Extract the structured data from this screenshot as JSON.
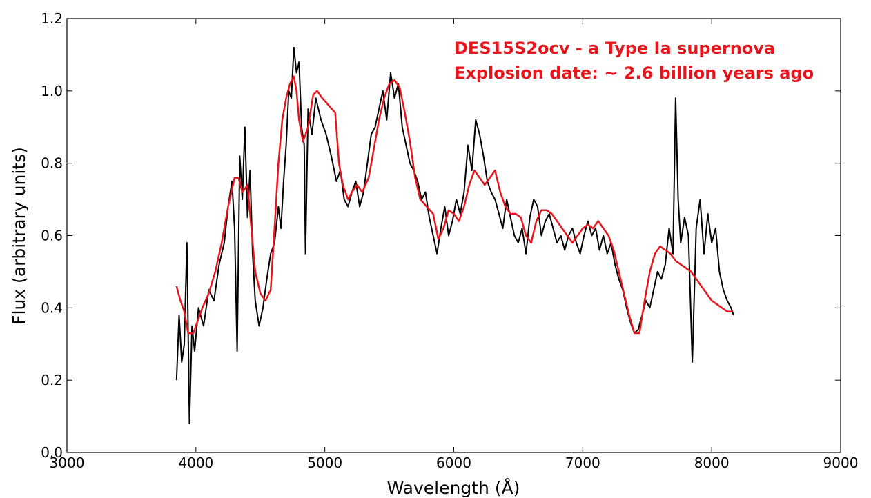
{
  "chart_data": {
    "type": "line",
    "xlabel": "Wavelength (Å)",
    "ylabel": "Flux (arbitrary units)",
    "xlim": [
      3000,
      9000
    ],
    "ylim": [
      0.0,
      1.2
    ],
    "x_ticks": [
      "3000",
      "4000",
      "5000",
      "6000",
      "7000",
      "8000",
      "9000"
    ],
    "y_ticks": [
      "0.0",
      "0.2",
      "0.4",
      "0.6",
      "0.8",
      "1.0",
      "1.2"
    ],
    "grid": false,
    "annotations": [
      "DES15S2ocv - a Type Ia supernova",
      "Explosion date: ~ 2.6 billion years ago"
    ],
    "colors": {
      "observed": "#000000",
      "template": "#e8141b",
      "annotation": "#e8141b"
    },
    "series": [
      {
        "role": "observed spectrum",
        "color": "#000000",
        "x": [
          3850,
          3870,
          3890,
          3910,
          3930,
          3950,
          3970,
          3990,
          4020,
          4060,
          4100,
          4140,
          4180,
          4220,
          4250,
          4280,
          4300,
          4320,
          4340,
          4360,
          4380,
          4400,
          4420,
          4440,
          4460,
          4490,
          4520,
          4550,
          4580,
          4610,
          4640,
          4660,
          4680,
          4700,
          4720,
          4740,
          4760,
          4780,
          4800,
          4820,
          4840,
          4850,
          4870,
          4900,
          4930,
          4970,
          5010,
          5050,
          5090,
          5120,
          5150,
          5180,
          5210,
          5240,
          5270,
          5300,
          5330,
          5360,
          5390,
          5420,
          5450,
          5480,
          5510,
          5540,
          5570,
          5600,
          5630,
          5660,
          5690,
          5720,
          5750,
          5780,
          5810,
          5840,
          5870,
          5900,
          5930,
          5960,
          5990,
          6020,
          6050,
          6080,
          6110,
          6140,
          6170,
          6200,
          6230,
          6260,
          6290,
          6320,
          6350,
          6380,
          6410,
          6440,
          6470,
          6500,
          6530,
          6560,
          6590,
          6620,
          6650,
          6680,
          6710,
          6740,
          6770,
          6800,
          6830,
          6860,
          6890,
          6920,
          6950,
          6980,
          7010,
          7040,
          7070,
          7100,
          7130,
          7160,
          7190,
          7220,
          7250,
          7280,
          7310,
          7340,
          7370,
          7400,
          7430,
          7460,
          7490,
          7520,
          7550,
          7580,
          7610,
          7640,
          7670,
          7700,
          7720,
          7740,
          7760,
          7790,
          7820,
          7850,
          7880,
          7910,
          7940,
          7970,
          8000,
          8030,
          8060,
          8090,
          8120,
          8150,
          8170
        ],
        "y": [
          0.2,
          0.38,
          0.25,
          0.3,
          0.58,
          0.08,
          0.35,
          0.28,
          0.4,
          0.35,
          0.45,
          0.42,
          0.52,
          0.58,
          0.68,
          0.75,
          0.62,
          0.28,
          0.82,
          0.7,
          0.9,
          0.65,
          0.78,
          0.55,
          0.42,
          0.35,
          0.4,
          0.48,
          0.55,
          0.58,
          0.68,
          0.62,
          0.75,
          0.85,
          1.0,
          0.98,
          1.12,
          1.05,
          1.08,
          0.9,
          0.85,
          0.55,
          0.95,
          0.88,
          0.98,
          0.92,
          0.88,
          0.82,
          0.75,
          0.78,
          0.7,
          0.68,
          0.72,
          0.75,
          0.68,
          0.72,
          0.8,
          0.88,
          0.9,
          0.95,
          1.0,
          0.92,
          1.05,
          0.98,
          1.02,
          0.9,
          0.85,
          0.8,
          0.78,
          0.75,
          0.7,
          0.72,
          0.65,
          0.6,
          0.55,
          0.62,
          0.68,
          0.6,
          0.64,
          0.7,
          0.66,
          0.72,
          0.85,
          0.78,
          0.92,
          0.88,
          0.82,
          0.75,
          0.72,
          0.7,
          0.66,
          0.62,
          0.7,
          0.65,
          0.6,
          0.58,
          0.62,
          0.55,
          0.65,
          0.7,
          0.68,
          0.6,
          0.64,
          0.66,
          0.62,
          0.58,
          0.6,
          0.56,
          0.6,
          0.62,
          0.58,
          0.55,
          0.6,
          0.64,
          0.6,
          0.62,
          0.56,
          0.6,
          0.55,
          0.58,
          0.52,
          0.48,
          0.45,
          0.4,
          0.36,
          0.33,
          0.34,
          0.38,
          0.42,
          0.4,
          0.45,
          0.5,
          0.48,
          0.52,
          0.62,
          0.55,
          0.98,
          0.7,
          0.58,
          0.65,
          0.6,
          0.25,
          0.62,
          0.7,
          0.55,
          0.66,
          0.58,
          0.62,
          0.5,
          0.45,
          0.42,
          0.4,
          0.38
        ]
      },
      {
        "role": "template fit",
        "color": "#e8141b",
        "x": [
          3850,
          3880,
          3910,
          3940,
          3980,
          4050,
          4100,
          4150,
          4200,
          4250,
          4300,
          4330,
          4360,
          4400,
          4430,
          4460,
          4500,
          4540,
          4580,
          4610,
          4640,
          4670,
          4700,
          4730,
          4760,
          4780,
          4800,
          4830,
          4870,
          4910,
          4940,
          4980,
          5030,
          5080,
          5110,
          5140,
          5180,
          5210,
          5250,
          5290,
          5340,
          5380,
          5420,
          5460,
          5500,
          5540,
          5580,
          5620,
          5660,
          5700,
          5740,
          5790,
          5840,
          5880,
          5920,
          5960,
          6000,
          6040,
          6080,
          6120,
          6160,
          6200,
          6240,
          6280,
          6320,
          6360,
          6400,
          6440,
          6480,
          6520,
          6560,
          6600,
          6640,
          6680,
          6720,
          6760,
          6800,
          6840,
          6880,
          6920,
          6960,
          7000,
          7040,
          7080,
          7120,
          7160,
          7200,
          7240,
          7280,
          7320,
          7360,
          7400,
          7440,
          7480,
          7520,
          7560,
          7600,
          7640,
          7680,
          7720,
          7760,
          7800,
          7840,
          7880,
          7920,
          7960,
          8000,
          8040,
          8080,
          8120,
          8160
        ],
        "y": [
          0.46,
          0.42,
          0.39,
          0.33,
          0.33,
          0.4,
          0.44,
          0.5,
          0.58,
          0.68,
          0.76,
          0.76,
          0.72,
          0.74,
          0.62,
          0.5,
          0.44,
          0.42,
          0.45,
          0.62,
          0.8,
          0.92,
          0.98,
          1.02,
          1.04,
          1.0,
          0.92,
          0.86,
          0.9,
          0.99,
          1.0,
          0.98,
          0.96,
          0.94,
          0.8,
          0.74,
          0.7,
          0.72,
          0.74,
          0.72,
          0.76,
          0.84,
          0.92,
          0.98,
          1.02,
          1.03,
          1.01,
          0.94,
          0.86,
          0.76,
          0.7,
          0.68,
          0.66,
          0.59,
          0.62,
          0.67,
          0.66,
          0.64,
          0.68,
          0.74,
          0.78,
          0.76,
          0.74,
          0.76,
          0.78,
          0.72,
          0.68,
          0.66,
          0.66,
          0.65,
          0.6,
          0.58,
          0.64,
          0.67,
          0.67,
          0.66,
          0.64,
          0.62,
          0.6,
          0.58,
          0.6,
          0.62,
          0.63,
          0.62,
          0.64,
          0.62,
          0.6,
          0.56,
          0.5,
          0.44,
          0.38,
          0.33,
          0.33,
          0.42,
          0.5,
          0.55,
          0.57,
          0.56,
          0.55,
          0.53,
          0.52,
          0.51,
          0.5,
          0.48,
          0.46,
          0.44,
          0.42,
          0.41,
          0.4,
          0.39,
          0.39
        ]
      }
    ]
  }
}
